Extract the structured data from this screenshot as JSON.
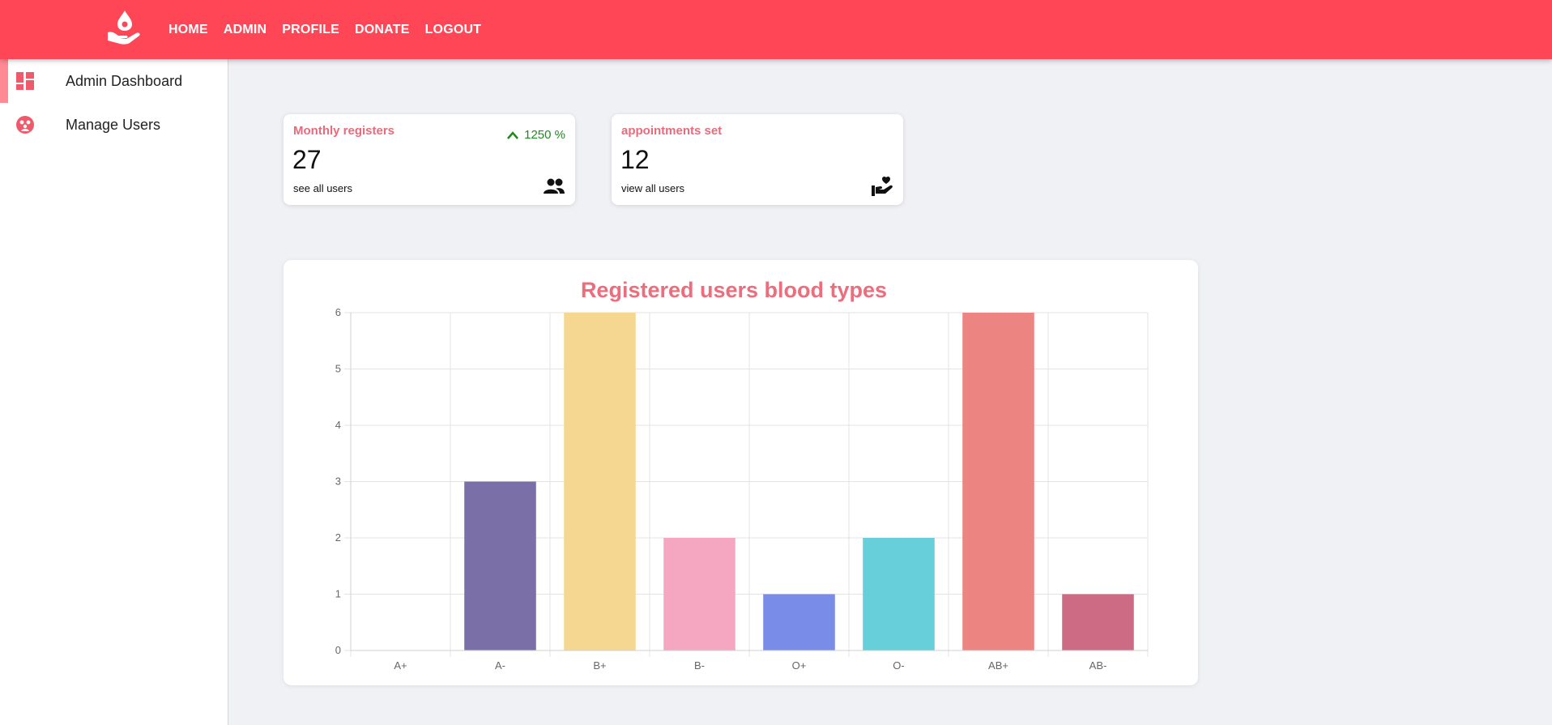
{
  "nav": {
    "items": [
      "HOME",
      "ADMIN",
      "PROFILE",
      "DONATE",
      "LOGOUT"
    ],
    "logo_icon": "hand-blood-drop-icon"
  },
  "sidebar": {
    "items": [
      {
        "label": "Admin Dashboard",
        "icon": "dashboard-icon",
        "active": true
      },
      {
        "label": "Manage Users",
        "icon": "users-icon",
        "active": false
      }
    ]
  },
  "cards": [
    {
      "title": "Monthly registers",
      "value": "27",
      "trend": "1250 %",
      "link": "see all users",
      "icon": "people-icon"
    },
    {
      "title": "appointments set",
      "value": "12",
      "link": "view all users",
      "icon": "volunteer-heart-icon"
    }
  ],
  "colors": {
    "brand": "#fe4656",
    "accent_text": "#ec6d7c",
    "trend_up": "#1e8a1e"
  },
  "chart_data": {
    "type": "bar",
    "title": "Registered users blood types",
    "categories": [
      "A+",
      "A-",
      "B+",
      "B-",
      "O+",
      "O-",
      "AB+",
      "AB-"
    ],
    "values": [
      0,
      3,
      6,
      2,
      1,
      2,
      6,
      1
    ],
    "colors": [
      "#cccccc",
      "#7a6fa6",
      "#f5d791",
      "#f5a6c0",
      "#798ce8",
      "#66cfd9",
      "#ec8482",
      "#cd6b84"
    ],
    "ylim": [
      0,
      6
    ],
    "yticks": [
      0,
      1,
      2,
      3,
      4,
      5,
      6
    ],
    "grid": true,
    "legend": "none"
  }
}
